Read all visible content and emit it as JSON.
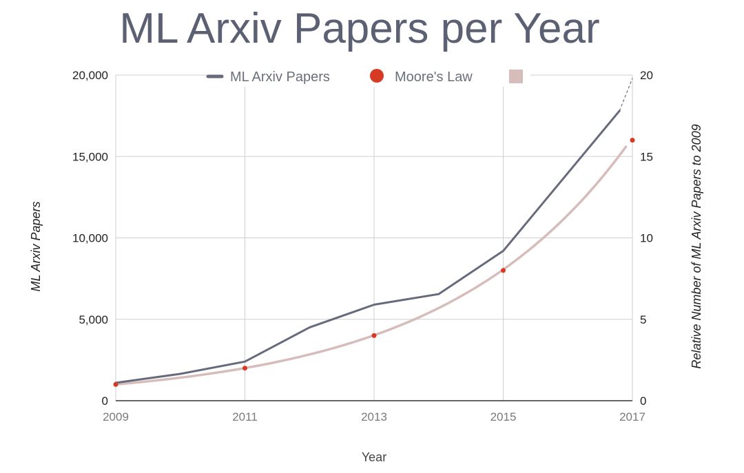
{
  "chart_data": {
    "type": "line",
    "title": "ML Arxiv Papers per Year",
    "xlabel": "Year",
    "ylabel": "ML Arxiv Papers",
    "y2label": "Relative Number of ML Arxiv Papers  to 2009",
    "xlim": [
      2009,
      2017
    ],
    "ylim": [
      0,
      20000
    ],
    "y2lim": [
      0,
      20
    ],
    "x_ticks": [
      "2009",
      "2011",
      "2013",
      "2015",
      "2017"
    ],
    "y_ticks": [
      "0",
      "5,000",
      "10,000",
      "15,000",
      "20,000"
    ],
    "y2_ticks": [
      "0",
      "5",
      "10",
      "15",
      "20"
    ],
    "grid": true,
    "legend_position": "top",
    "series": [
      {
        "name": "ML Arxiv Papers",
        "axis": "left",
        "color": "#666a7c",
        "x": [
          2009,
          2010,
          2011,
          2012,
          2013,
          2014,
          2015,
          2016.8
        ],
        "values": [
          1100,
          1650,
          2400,
          4500,
          5900,
          6550,
          9200,
          17800
        ],
        "projection": {
          "x": [
            2016.8,
            2017
          ],
          "values": [
            17800,
            19800
          ]
        }
      },
      {
        "name": "Moore's Law",
        "axis": "right",
        "color": "#d63a24",
        "x": [
          2009,
          2011,
          2013,
          2015,
          2017
        ],
        "values": [
          1,
          2,
          4,
          8,
          16
        ]
      },
      {
        "name": "",
        "axis": "right",
        "color": "#d6bcba",
        "curve": "exponential fit",
        "x": [
          2009,
          2011,
          2013,
          2015,
          2016.9
        ],
        "values": [
          1,
          2,
          4,
          8,
          15.6
        ]
      }
    ]
  }
}
